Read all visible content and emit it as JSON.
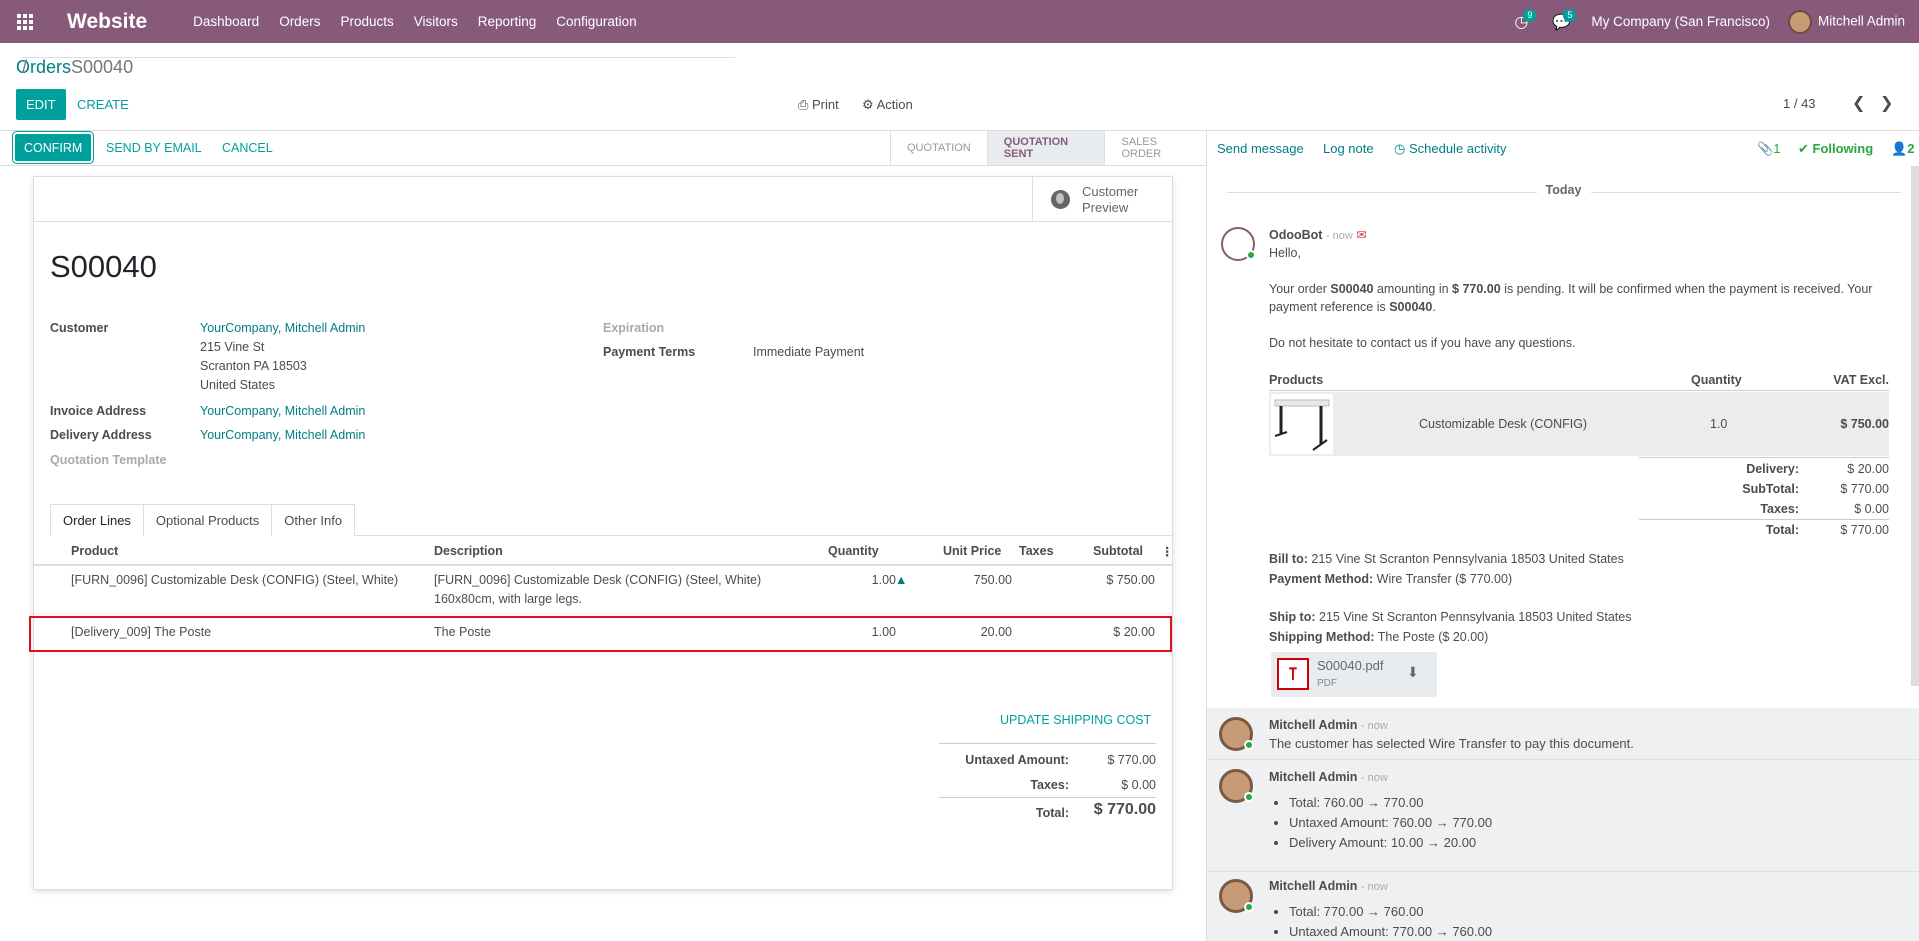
{
  "topbar": {
    "app_name": "Website",
    "menu": [
      "Dashboard",
      "Orders",
      "Products",
      "Visitors",
      "Reporting",
      "Configuration"
    ],
    "activity_count": "9",
    "messages_count": "5",
    "company": "My Company (San Francisco)",
    "user": "Mitchell Admin",
    "colors": {
      "bar": "#875A7B",
      "accent": "#00A09D"
    }
  },
  "control_panel": {
    "breadcrumb_parent": "Orders",
    "breadcrumb_sep": "/",
    "breadcrumb_current": "S00040",
    "edit_label": "EDIT",
    "create_label": "CREATE",
    "print_label": "Print",
    "action_label": "Action",
    "pager": "1 / 43"
  },
  "statusbar": {
    "confirm_label": "CONFIRM",
    "send_email_label": "SEND BY EMAIL",
    "cancel_label": "CANCEL",
    "stages": [
      "QUOTATION",
      "QUOTATION SENT",
      "SALES ORDER"
    ],
    "active_stage": "QUOTATION SENT"
  },
  "form": {
    "customer_preview_line1": "Customer",
    "customer_preview_line2": "Preview",
    "order_name": "S00040",
    "customer_label": "Customer",
    "customer_name": "YourCompany, Mitchell Admin",
    "customer_addr1": "215 Vine St",
    "customer_addr2": "Scranton PA 18503",
    "customer_addr3": "United States",
    "invoice_label": "Invoice Address",
    "invoice_value": "YourCompany, Mitchell Admin",
    "delivery_label": "Delivery Address",
    "delivery_value": "YourCompany, Mitchell Admin",
    "template_label": "Quotation Template",
    "expiration_label": "Expiration",
    "payment_terms_label": "Payment Terms",
    "payment_terms_value": "Immediate Payment"
  },
  "tabs": [
    "Order Lines",
    "Optional Products",
    "Other Info"
  ],
  "order_lines": {
    "headers": [
      "Product",
      "Description",
      "Quantity",
      "Unit Price",
      "Taxes",
      "Subtotal"
    ],
    "rows": [
      {
        "product": "[FURN_0096] Customizable Desk (CONFIG) (Steel, White)",
        "desc1": "[FURN_0096] Customizable Desk (CONFIG) (Steel, White)",
        "desc2": "160x80cm, with large legs.",
        "qty": "1.00",
        "price": "750.00",
        "taxes": "",
        "subtotal": "$ 750.00"
      },
      {
        "product": "[Delivery_009] The Poste",
        "desc1": "The Poste",
        "desc2": "",
        "qty": "1.00",
        "price": "20.00",
        "taxes": "",
        "subtotal": "$ 20.00"
      }
    ]
  },
  "totals": {
    "update_shipping_label": "UPDATE SHIPPING COST",
    "untaxed_label": "Untaxed Amount:",
    "untaxed_value": "$ 770.00",
    "taxes_label": "Taxes:",
    "taxes_value": "$ 0.00",
    "total_label": "Total:",
    "total_value": "$ 770.00"
  },
  "chatter": {
    "send_message": "Send message",
    "log_note": "Log note",
    "schedule_activity": "Schedule activity",
    "attachments_count": "1",
    "following": "Following",
    "followers_count": "2",
    "today": "Today",
    "odoobot": {
      "author": "OdooBot",
      "ago": "- now",
      "hello": "Hello,",
      "p1_a": "Your order ",
      "p1_order": "S00040",
      "p1_b": " amounting in ",
      "p1_amount": "$ 770.00",
      "p1_c": " is pending. It will be confirmed when the payment is received. Your",
      "p1_d": "payment reference is ",
      "p1_ref": "S00040",
      "p1_e": ".",
      "p2": "Do not hesitate to contact us if you have any questions.",
      "tbl_products": "Products",
      "tbl_quantity": "Quantity",
      "tbl_vat": "VAT Excl.",
      "item_name": "Customizable Desk (CONFIG)",
      "item_qty": "1.0",
      "item_price": "$ 750.00",
      "delivery_label": "Delivery:",
      "delivery_value": "$ 20.00",
      "subtotal_label": "SubTotal:",
      "subtotal_value": "$ 770.00",
      "taxes_label": "Taxes:",
      "taxes_value": "$ 0.00",
      "total_label": "Total:",
      "total_value": "$ 770.00",
      "bill_to_label": "Bill to:",
      "bill_to_value": " 215 Vine St Scranton Pennsylvania 18503 United States",
      "payment_method_label": "Payment Method:",
      "payment_method_value": " Wire Transfer ($ 770.00)",
      "ship_to_label": "Ship to:",
      "ship_to_value": " 215 Vine St Scranton Pennsylvania 18503 United States",
      "shipping_method_label": "Shipping Method:",
      "shipping_method_value": " The Poste ($ 20.00)",
      "attachment_name": "S00040.pdf",
      "attachment_type": "PDF"
    },
    "messages": [
      {
        "author": "Mitchell Admin",
        "ago": "- now",
        "body": "The customer has selected Wire Transfer to pay this document."
      },
      {
        "author": "Mitchell Admin",
        "ago": "- now",
        "changes": [
          "Total: 760.00 → 770.00",
          "Untaxed Amount: 760.00 → 770.00",
          "Delivery Amount: 10.00 → 20.00"
        ]
      },
      {
        "author": "Mitchell Admin",
        "ago": "- now",
        "changes": [
          "Total: 770.00 → 760.00",
          "Untaxed Amount: 770.00 → 760.00"
        ]
      }
    ]
  }
}
